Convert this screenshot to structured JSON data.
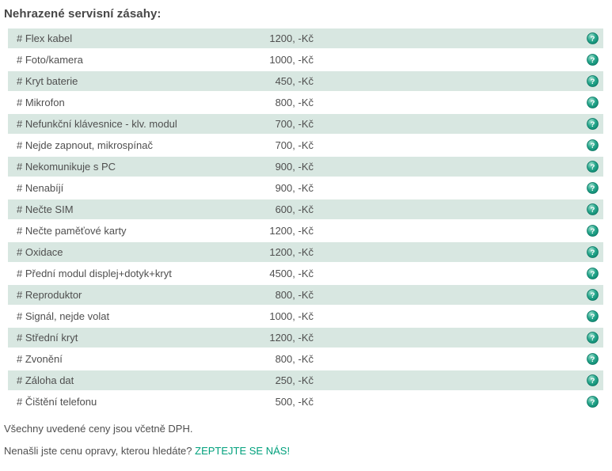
{
  "page": {
    "title": "Nehrazené servisní zásahy:",
    "footer_note": "Všechny uvedené ceny jsou včetně DPH.",
    "footer_question": "Nenašli jste cenu opravy, kterou hledáte?",
    "footer_link_label": "ZEPTEJTE SE NÁS!"
  },
  "colors": {
    "row_alt_background": "#d8e7e1",
    "text": "#4f4f4f",
    "title_text": "#474747",
    "link": "#00a07c",
    "icon_green_light": "#9fe0cf",
    "icon_green_mid": "#2aa98e",
    "icon_green_dark": "#0e8a72",
    "icon_border": "#0b7a66"
  },
  "table": {
    "help_icon_name": "help-icon",
    "help_icon_glyph": "?",
    "rows": [
      {
        "label": "# Flex kabel",
        "price": "1200, -Kč"
      },
      {
        "label": "# Foto/kamera",
        "price": "1000, -Kč"
      },
      {
        "label": "# Kryt baterie",
        "price": "450, -Kč"
      },
      {
        "label": "# Mikrofon",
        "price": "800, -Kč"
      },
      {
        "label": "# Nefunkční klávesnice - klv. modul",
        "price": "700, -Kč"
      },
      {
        "label": "# Nejde zapnout, mikrospínač",
        "price": "700, -Kč"
      },
      {
        "label": "# Nekomunikuje s PC",
        "price": "900, -Kč"
      },
      {
        "label": "# Nenabíjí",
        "price": "900, -Kč"
      },
      {
        "label": "# Nečte SIM",
        "price": "600, -Kč"
      },
      {
        "label": "# Nečte paměťové karty",
        "price": "1200, -Kč"
      },
      {
        "label": "# Oxidace",
        "price": "1200, -Kč"
      },
      {
        "label": "# Přední modul displej+dotyk+kryt",
        "price": "4500, -Kč"
      },
      {
        "label": "# Reproduktor",
        "price": "800, -Kč"
      },
      {
        "label": "# Signál, nejde volat",
        "price": "1000, -Kč"
      },
      {
        "label": "# Střední kryt",
        "price": "1200, -Kč"
      },
      {
        "label": "# Zvonění",
        "price": "800, -Kč"
      },
      {
        "label": "# Záloha dat",
        "price": "250, -Kč"
      },
      {
        "label": "# Čištění telefonu",
        "price": "500, -Kč"
      }
    ]
  }
}
